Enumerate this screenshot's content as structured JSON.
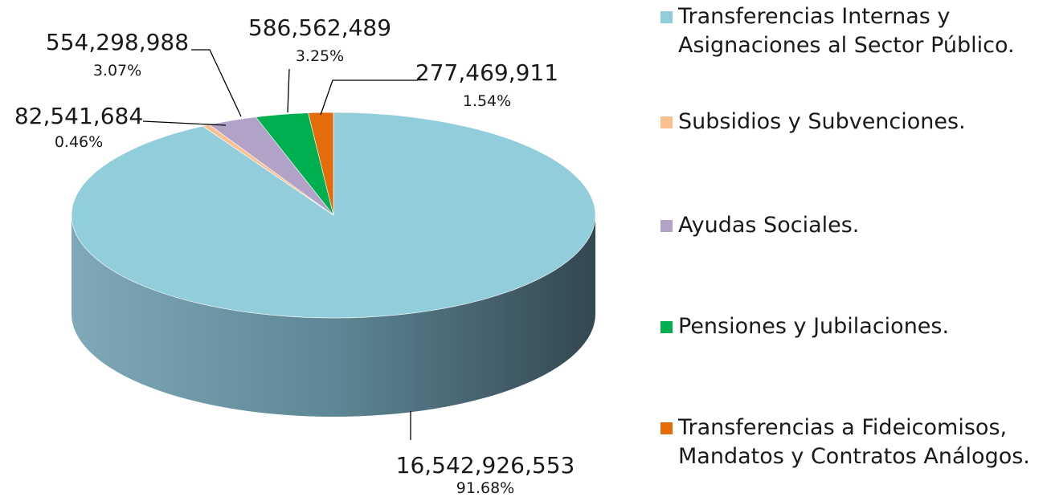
{
  "chart_data": {
    "type": "pie",
    "style": "3d",
    "categories": [
      "Transferencias Internas y Asignaciones al Sector Público.",
      "Subsidios y Subvenciones.",
      "Ayudas Sociales.",
      "Pensiones y Jubilaciones.",
      "Transferencias a Fideicomisos, Mandatos y Contratos Análogos."
    ],
    "values": [
      16542926553,
      82541684,
      554298988,
      586562489,
      277469911
    ],
    "value_labels": [
      "16,542,926,553",
      "82,541,684",
      "554,298,988",
      "586,562,489",
      "277,469,911"
    ],
    "percent_labels": [
      "91.68%",
      "0.46%",
      "3.07%",
      "3.25%",
      "1.54%"
    ],
    "colors": [
      "#92CDDC",
      "#FAC090",
      "#B3A2C7",
      "#00B050",
      "#E46C0A"
    ],
    "legend_position": "right"
  },
  "legend": {
    "items": [
      {
        "lines": [
          "Transferencias Internas y",
          "Asignaciones al Sector Público."
        ],
        "color": "#92CDDC"
      },
      {
        "lines": [
          "Subsidios y Subvenciones."
        ],
        "color": "#FAC090"
      },
      {
        "lines": [
          "Ayudas Sociales."
        ],
        "color": "#B3A2C7"
      },
      {
        "lines": [
          "Pensiones y Jubilaciones."
        ],
        "color": "#00B050"
      },
      {
        "lines": [
          "Transferencias a Fideicomisos,",
          "Mandatos y Contratos Análogos."
        ],
        "color": "#E46C0A"
      }
    ]
  }
}
